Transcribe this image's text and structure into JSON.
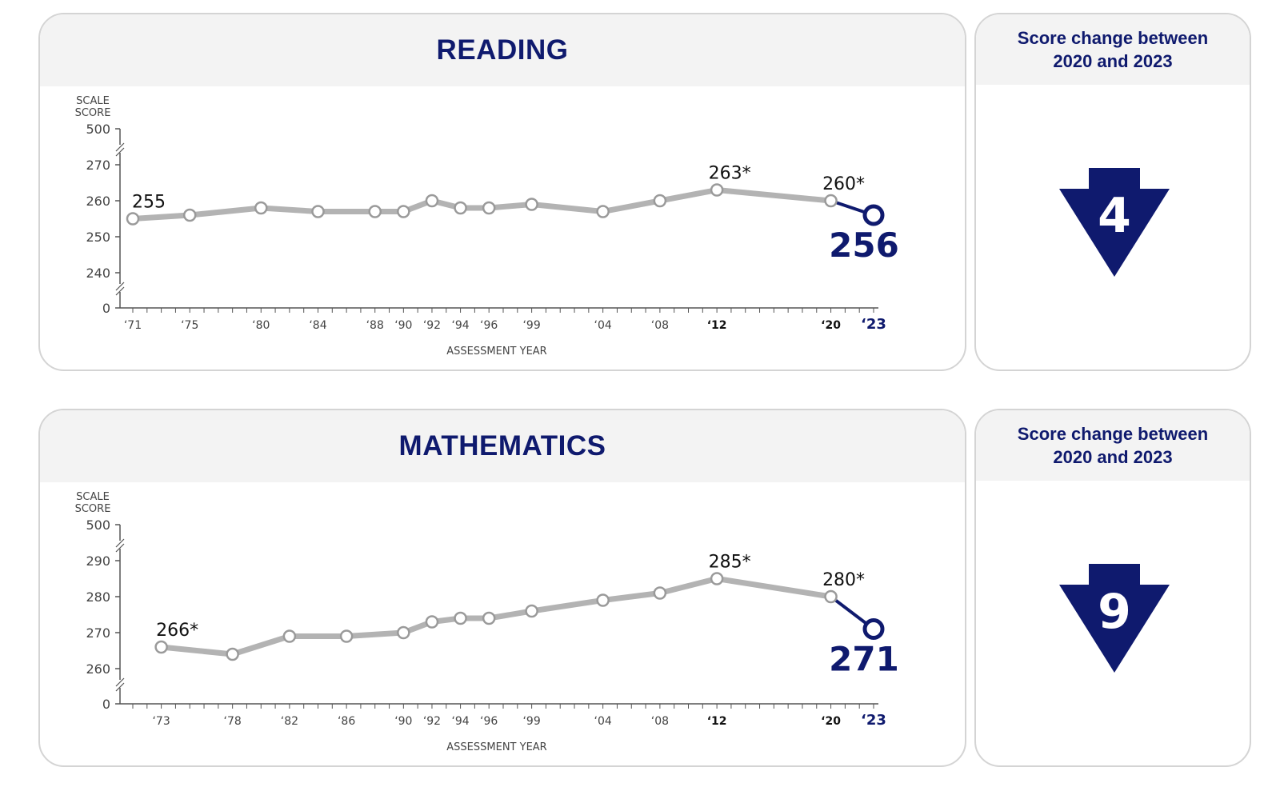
{
  "chart_data": [
    {
      "type": "line",
      "title": "READING",
      "ylabel": "SCALE SCORE",
      "xlabel": "ASSESSMENT YEAR",
      "y_ticks": [
        "500",
        "270",
        "260",
        "250",
        "240",
        "0"
      ],
      "x_ticks": [
        "‘71",
        "‘75",
        "‘80",
        "‘84",
        "‘88",
        "‘90",
        "‘92",
        "‘94",
        "‘96",
        "‘99",
        "‘04",
        "‘08",
        "‘12",
        "‘20",
        "‘23"
      ],
      "x_years": [
        1971,
        1975,
        1980,
        1984,
        1988,
        1990,
        1992,
        1994,
        1996,
        1999,
        2004,
        2008,
        2012,
        2020,
        2023
      ],
      "bold_ticks": [
        "‘12",
        "‘20"
      ],
      "highlight_tick": "‘23",
      "values": [
        255,
        256,
        258,
        257,
        257,
        257,
        260,
        258,
        258,
        259,
        257,
        260,
        263,
        260,
        256
      ],
      "data_labels": [
        {
          "index": 0,
          "text": "255"
        },
        {
          "index": 12,
          "text": "263*"
        },
        {
          "index": 13,
          "text": "260*"
        },
        {
          "index": 14,
          "text": "256"
        }
      ],
      "ylim": [
        235,
        275
      ],
      "axis_break": true,
      "line_color": "#b3b3b3",
      "highlight_color": "#0f1a6e"
    },
    {
      "type": "line",
      "title": "MATHEMATICS",
      "ylabel": "SCALE SCORE",
      "xlabel": "ASSESSMENT YEAR",
      "y_ticks": [
        "500",
        "290",
        "280",
        "270",
        "260",
        "0"
      ],
      "x_ticks": [
        "‘73",
        "‘78",
        "‘82",
        "‘86",
        "‘90",
        "‘92",
        "‘94",
        "‘96",
        "‘99",
        "‘04",
        "‘08",
        "‘12",
        "‘20",
        "‘23"
      ],
      "x_years": [
        1973,
        1978,
        1982,
        1986,
        1990,
        1992,
        1994,
        1996,
        1999,
        2004,
        2008,
        2012,
        2020,
        2023
      ],
      "bold_ticks": [
        "‘12",
        "‘20"
      ],
      "highlight_tick": "‘23",
      "values": [
        266,
        264,
        269,
        269,
        270,
        273,
        274,
        274,
        276,
        279,
        281,
        285,
        280,
        271
      ],
      "data_labels": [
        {
          "index": 0,
          "text": "266*"
        },
        {
          "index": 11,
          "text": "285*"
        },
        {
          "index": 12,
          "text": "280*"
        },
        {
          "index": 13,
          "text": "271"
        }
      ],
      "ylim": [
        255,
        295
      ],
      "axis_break": true,
      "line_color": "#b3b3b3",
      "highlight_color": "#0f1a6e"
    }
  ],
  "score_change": [
    {
      "title": "Score change between\n2020 and 2023",
      "value": "4",
      "direction": "down"
    },
    {
      "title": "Score change between\n2020 and 2023",
      "value": "9",
      "direction": "down"
    }
  ],
  "colors": {
    "navy": "#0f1a6e",
    "gray_line": "#b3b3b3",
    "axis": "#555555",
    "panel_head": "#f3f3f3"
  }
}
